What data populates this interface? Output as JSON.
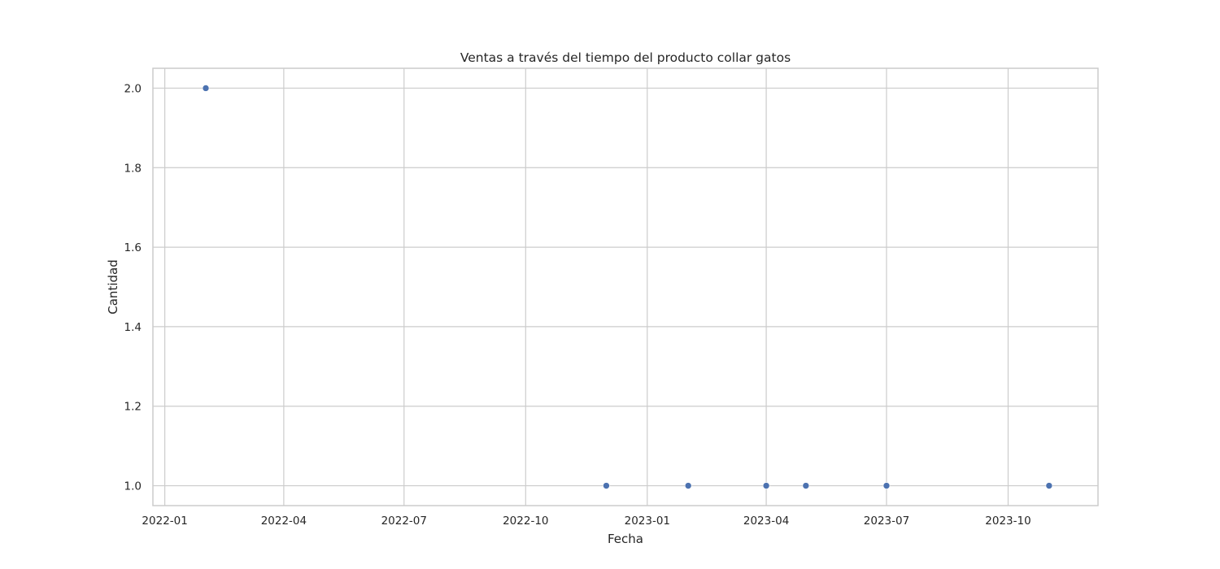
{
  "chart_data": {
    "type": "scatter",
    "title": "Ventas a través del tiempo del producto collar gatos",
    "xlabel": "Fecha",
    "ylabel": "Cantidad",
    "x_type": "date",
    "xlim": [
      "2021-12-23",
      "2023-12-08"
    ],
    "ylim": [
      0.95,
      2.05
    ],
    "x_ticks": [
      "2022-01-01",
      "2022-04-01",
      "2022-07-01",
      "2022-10-01",
      "2023-01-01",
      "2023-04-01",
      "2023-07-01",
      "2023-10-01"
    ],
    "x_tick_labels": [
      "2022-01",
      "2022-04",
      "2022-07",
      "2022-10",
      "2023-01",
      "2023-04",
      "2023-07",
      "2023-10"
    ],
    "y_ticks": [
      1.0,
      1.2,
      1.4,
      1.6,
      1.8,
      2.0
    ],
    "y_tick_labels": [
      "1.0",
      "1.2",
      "1.4",
      "1.6",
      "1.8",
      "2.0"
    ],
    "grid": true,
    "color": "#4c72b0",
    "points": [
      {
        "x": "2022-02-01",
        "y": 2
      },
      {
        "x": "2022-12-01",
        "y": 1
      },
      {
        "x": "2023-02-01",
        "y": 1
      },
      {
        "x": "2023-04-01",
        "y": 1
      },
      {
        "x": "2023-05-01",
        "y": 1
      },
      {
        "x": "2023-07-01",
        "y": 1
      },
      {
        "x": "2023-11-01",
        "y": 1
      }
    ]
  }
}
